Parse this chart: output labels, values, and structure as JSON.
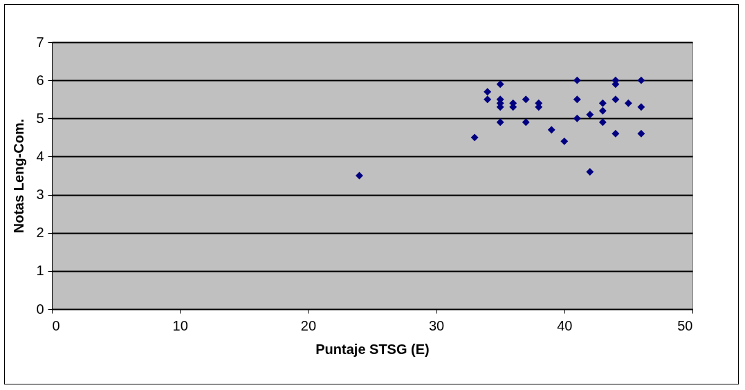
{
  "chart_data": {
    "type": "scatter",
    "xlabel": "Puntaje STSG (E)",
    "ylabel": "Notas Leng-Com.",
    "x": [
      24,
      33,
      34,
      34,
      35,
      35,
      35,
      35,
      35,
      36,
      36,
      37,
      37,
      38,
      38,
      39,
      40,
      41,
      41,
      41,
      42,
      42,
      43,
      43,
      43,
      44,
      44,
      44,
      44,
      45,
      46,
      46,
      46
    ],
    "series": [
      {
        "color": "#000080",
        "values": [
          3.5,
          4.5,
          5.7,
          5.5,
          5.9,
          5.5,
          5.4,
          5.3,
          4.9,
          5.4,
          5.3,
          5.5,
          4.9,
          5.4,
          5.3,
          4.7,
          4.4,
          6.0,
          5.5,
          5.0,
          5.1,
          3.6,
          5.4,
          5.2,
          4.9,
          6.0,
          5.9,
          5.5,
          4.6,
          5.4,
          6.0,
          5.3,
          4.6
        ]
      }
    ],
    "xlim": [
      0,
      50
    ],
    "xticks": [
      0,
      10,
      20,
      30,
      40,
      50
    ],
    "ylim": [
      0,
      7
    ],
    "yticks": [
      0,
      1,
      2,
      3,
      4,
      5,
      6,
      7
    ],
    "grid": "y",
    "marker": "diamond"
  }
}
